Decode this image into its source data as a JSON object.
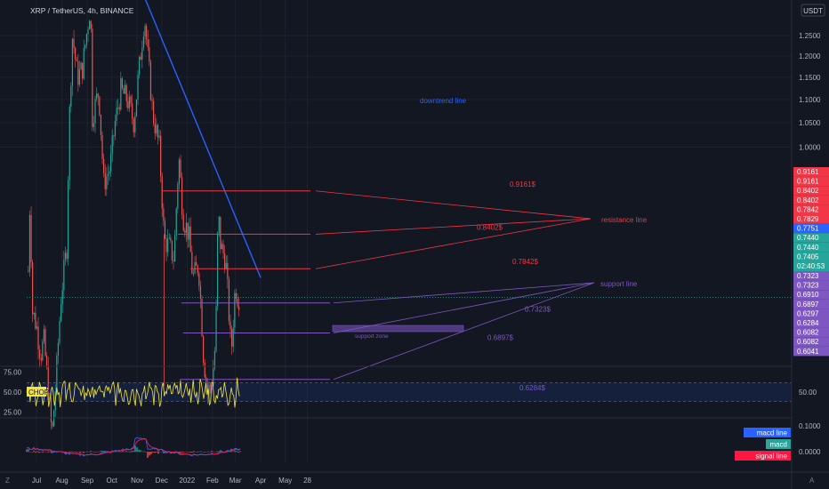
{
  "header": {
    "symbol_line": "XRP / TetherUS, 4h, BINANCE",
    "currency": "USDT"
  },
  "colors": {
    "background": "#131722",
    "grid": "#1e2230",
    "up": "#26a69a",
    "down": "#ef5350",
    "resistance": "#f23645",
    "support": "#7e57c2",
    "downtrend": "#2962ff",
    "chop": "#f5e63d",
    "macd_line": "#2962ff",
    "signal_line": "#ff1744"
  },
  "chart_data": [
    {
      "type": "candlestick",
      "title": "XRP / TetherUS, 4h, BINANCE",
      "y_scale": "log",
      "y_ticks": [
        "1.2500",
        "1.2000",
        "1.1500",
        "1.1000",
        "1.0500",
        "1.0000"
      ],
      "ylim": [
        0.6,
        1.34
      ],
      "x_ticks": [
        "Jul",
        "Aug",
        "Sep",
        "Oct",
        "Nov",
        "Dec",
        "2022",
        "Feb",
        "Mar",
        "Apr",
        "May",
        "28"
      ],
      "price_path": [
        {
          "t": "2021-06-21",
          "p": 0.78
        },
        {
          "t": "2021-06-23",
          "p": 0.9
        },
        {
          "t": "2021-06-26",
          "p": 0.72
        },
        {
          "t": "2021-07-01",
          "p": 0.7
        },
        {
          "t": "2021-07-06",
          "p": 0.66
        },
        {
          "t": "2021-07-10",
          "p": 0.68
        },
        {
          "t": "2021-07-20",
          "p": 0.56
        },
        {
          "t": "2021-07-25",
          "p": 0.63
        },
        {
          "t": "2021-07-31",
          "p": 0.74
        },
        {
          "t": "2021-08-07",
          "p": 0.82
        },
        {
          "t": "2021-08-10",
          "p": 1.05
        },
        {
          "t": "2021-08-14",
          "p": 1.25
        },
        {
          "t": "2021-08-20",
          "p": 1.15
        },
        {
          "t": "2021-08-26",
          "p": 1.17
        },
        {
          "t": "2021-09-05",
          "p": 1.33
        },
        {
          "t": "2021-09-07",
          "p": 1.06
        },
        {
          "t": "2021-09-15",
          "p": 1.12
        },
        {
          "t": "2021-09-21",
          "p": 0.93
        },
        {
          "t": "2021-09-29",
          "p": 0.96
        },
        {
          "t": "2021-10-05",
          "p": 1.05
        },
        {
          "t": "2021-10-12",
          "p": 1.12
        },
        {
          "t": "2021-10-20",
          "p": 1.1
        },
        {
          "t": "2021-10-28",
          "p": 1.05
        },
        {
          "t": "2021-11-05",
          "p": 1.2
        },
        {
          "t": "2021-11-10",
          "p": 1.3
        },
        {
          "t": "2021-11-14",
          "p": 1.2
        },
        {
          "t": "2021-11-20",
          "p": 1.07
        },
        {
          "t": "2021-11-28",
          "p": 1.0
        },
        {
          "t": "2021-12-04",
          "p": 0.83
        },
        {
          "t": "2021-12-10",
          "p": 0.82
        },
        {
          "t": "2021-12-16",
          "p": 0.8
        },
        {
          "t": "2021-12-22",
          "p": 0.98
        },
        {
          "t": "2021-12-27",
          "p": 0.87
        },
        {
          "t": "2022-01-03",
          "p": 0.84
        },
        {
          "t": "2022-01-08",
          "p": 0.77
        },
        {
          "t": "2022-01-15",
          "p": 0.79
        },
        {
          "t": "2022-01-21",
          "p": 0.66
        },
        {
          "t": "2022-01-26",
          "p": 0.61
        },
        {
          "t": "2022-02-01",
          "p": 0.63
        },
        {
          "t": "2022-02-05",
          "p": 0.68
        },
        {
          "t": "2022-02-08",
          "p": 0.88
        },
        {
          "t": "2022-02-11",
          "p": 0.82
        },
        {
          "t": "2022-02-17",
          "p": 0.8
        },
        {
          "t": "2022-02-24",
          "p": 0.66
        },
        {
          "t": "2022-03-01",
          "p": 0.76
        },
        {
          "t": "2022-03-04",
          "p": 0.74
        },
        {
          "t": "2022-03-07",
          "p": 0.7405
        }
      ],
      "last_price": "0.7405",
      "countdown": "02:40:53"
    },
    {
      "type": "line",
      "name": "CHOP",
      "y_ticks": [
        "75.00",
        "50.00",
        "25.00"
      ],
      "right_tick": "50.00",
      "band": [
        38.2,
        61.8
      ]
    },
    {
      "type": "line",
      "name": "MACD",
      "y_ticks": [
        "0.1000",
        "0.0000"
      ],
      "legend": [
        "macd line",
        "macd",
        "signal line"
      ]
    }
  ],
  "price_labels": [
    {
      "text": "0.9161",
      "bg": "#f23645"
    },
    {
      "text": "0.9161",
      "bg": "#f23645"
    },
    {
      "text": "0.8402",
      "bg": "#f23645"
    },
    {
      "text": "0.8402",
      "bg": "#f23645"
    },
    {
      "text": "0.7842",
      "bg": "#f23645"
    },
    {
      "text": "0.7829",
      "bg": "#f23645"
    },
    {
      "text": "0.7751",
      "bg": "#2962ff"
    },
    {
      "text": "0.7440",
      "bg": "#26a69a"
    },
    {
      "text": "0.7440",
      "bg": "#26a69a"
    },
    {
      "text": "0.7405",
      "bg": "#26a69a"
    },
    {
      "text": "02:40:53",
      "bg": "#26a69a"
    },
    {
      "text": "0.7323",
      "bg": "#7e57c2"
    },
    {
      "text": "0.7323",
      "bg": "#7e57c2"
    },
    {
      "text": "0.6910",
      "bg": "#7e57c2"
    },
    {
      "text": "0.6897",
      "bg": "#7e57c2"
    },
    {
      "text": "0.6297",
      "bg": "#7e57c2"
    },
    {
      "text": "0.6284",
      "bg": "#7e57c2"
    },
    {
      "text": "0.6082",
      "bg": "#7e57c2"
    },
    {
      "text": "0.6082",
      "bg": "#7e57c2"
    },
    {
      "text": "0.6041",
      "bg": "#7e57c2"
    }
  ],
  "annotations": {
    "downtrend": "downtrend line",
    "resistance": "resistance line",
    "support": "support line",
    "support_zone": "support zone",
    "r1": "0.9161$",
    "r2": "0.8402$",
    "r3": "0.7842$",
    "s1": "0.7323$",
    "s2": "0.6897$",
    "s3": "0.6284$"
  },
  "footer": {
    "z_label": "Z",
    "a_label": "A"
  }
}
